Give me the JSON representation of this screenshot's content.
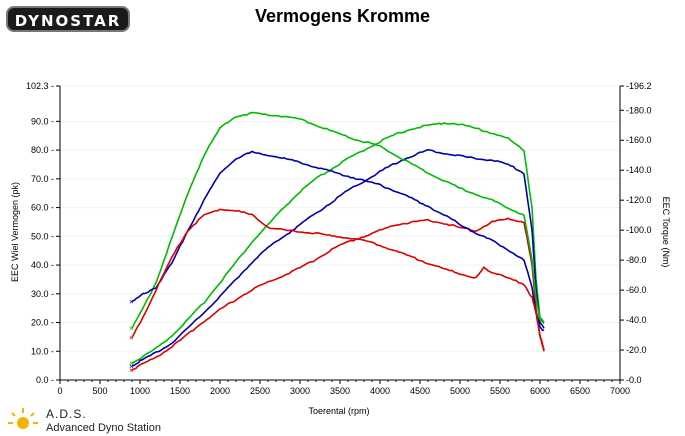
{
  "header": {
    "logo_text": "DYNOSTAR",
    "title": "Vermogens Kromme"
  },
  "footer": {
    "brand": "A.D.S.",
    "subtitle": "Advanced Dyno Station"
  },
  "colors": {
    "green": "#00bb00",
    "blue": "#0000b0",
    "red": "#dd0000",
    "watermark": "#e6e6e6"
  },
  "chart_data": {
    "type": "line",
    "title": "Vermogens Kromme",
    "xlabel": "Toerental (rpm)",
    "ylabel_left": "EEC Wiel Vermogen (pk)",
    "ylabel_right": "EEC Torque (Nm)",
    "xlim": [
      0,
      7000
    ],
    "ylim_left": [
      0,
      102.3
    ],
    "ylim_right": [
      0,
      196.2
    ],
    "x_ticks": [
      "0",
      "500",
      "1000",
      "1500",
      "2000",
      "2500",
      "3000",
      "3500",
      "4000",
      "4500",
      "5000",
      "5500",
      "6000",
      "6500",
      "7000"
    ],
    "y_left_ticks": [
      "0.0",
      "10.0",
      "20.0",
      "30.0",
      "40.0",
      "50.0",
      "60.0",
      "70.0",
      "80.0",
      "90.0",
      "102.3"
    ],
    "y_right_ticks": [
      "0.0",
      "20.0",
      "40.0",
      "60.0",
      "80.0",
      "100.0",
      "120.0",
      "140.0",
      "160.0",
      "180.0",
      "196.2"
    ],
    "series": [
      {
        "color": "green",
        "axis": "left",
        "x": [
          900,
          1000,
          1200,
          1400,
          1600,
          1800,
          2000,
          2200,
          2400,
          2600,
          2800,
          3000,
          3200,
          3400,
          3600,
          3800,
          4000,
          4200,
          4400,
          4600,
          4800,
          5000,
          5200,
          5400,
          5600,
          5800,
          5900,
          5950,
          6000,
          6050
        ],
        "y": [
          6,
          7.5,
          11,
          15.5,
          21,
          27,
          34,
          41,
          48,
          54,
          60,
          65.5,
          70,
          73.5,
          77,
          80,
          83,
          85.5,
          87.5,
          88.5,
          89.5,
          89,
          87.5,
          86,
          84,
          80,
          60,
          35,
          22,
          20
        ]
      },
      {
        "color": "blue",
        "axis": "left",
        "x": [
          900,
          1000,
          1200,
          1400,
          1600,
          1800,
          2000,
          2200,
          2400,
          2600,
          2800,
          3000,
          3200,
          3400,
          3600,
          3800,
          4000,
          4200,
          4400,
          4600,
          4800,
          5000,
          5200,
          5400,
          5600,
          5800,
          5900,
          5950,
          6000,
          6050
        ],
        "y": [
          5,
          6.5,
          9.5,
          13,
          18,
          23.5,
          29,
          35,
          41,
          46,
          50,
          54,
          58,
          62,
          66,
          69,
          72.5,
          75.5,
          78,
          80,
          79,
          78,
          77,
          76.5,
          75,
          72,
          52,
          32,
          20,
          18
        ]
      },
      {
        "color": "red",
        "axis": "left",
        "x": [
          900,
          1000,
          1200,
          1400,
          1600,
          1800,
          2000,
          2200,
          2400,
          2600,
          2800,
          3000,
          3200,
          3400,
          3600,
          3800,
          4000,
          4200,
          4400,
          4600,
          4800,
          5000,
          5200,
          5400,
          5600,
          5800,
          5900,
          5950,
          6000,
          6050
        ],
        "y": [
          3.5,
          5,
          8,
          11.5,
          16,
          20.5,
          24.5,
          28,
          31.5,
          34,
          36.5,
          39,
          42,
          45.5,
          48,
          50,
          52,
          54,
          55,
          55.5,
          54.5,
          53,
          52,
          55,
          56,
          55,
          40,
          25,
          15,
          10
        ]
      },
      {
        "color": "green",
        "axis": "right",
        "x": [
          900,
          1000,
          1200,
          1400,
          1600,
          1800,
          2000,
          2200,
          2400,
          2600,
          2800,
          3000,
          3200,
          3400,
          3600,
          3800,
          4000,
          4200,
          4400,
          4600,
          4800,
          5000,
          5200,
          5400,
          5600,
          5800,
          5900,
          5950,
          6000,
          6050
        ],
        "y": [
          35,
          44,
          65,
          95,
          125,
          150,
          168,
          176,
          178,
          177,
          176,
          174,
          170,
          166,
          162,
          159,
          156,
          150,
          144,
          138,
          133,
          128,
          124,
          120,
          115,
          110,
          80,
          55,
          40,
          38
        ]
      },
      {
        "color": "blue",
        "axis": "right",
        "x": [
          900,
          1000,
          1200,
          1400,
          1600,
          1800,
          2000,
          2200,
          2400,
          2600,
          2800,
          3000,
          3200,
          3400,
          3600,
          3800,
          4000,
          4200,
          4400,
          4600,
          4800,
          5000,
          5200,
          5400,
          5600,
          5800,
          5900,
          5950,
          6000,
          6050
        ],
        "y": [
          52,
          56,
          62,
          78,
          100,
          120,
          138,
          148,
          152,
          150,
          148,
          145,
          142,
          139,
          136,
          133,
          130,
          126,
          121,
          116,
          110,
          104,
          98,
          93,
          87,
          80,
          62,
          45,
          35,
          33
        ]
      },
      {
        "color": "red",
        "axis": "right",
        "x": [
          900,
          1000,
          1200,
          1400,
          1600,
          1800,
          2000,
          2200,
          2400,
          2600,
          2800,
          3000,
          3200,
          3400,
          3600,
          3800,
          4000,
          4200,
          4400,
          4600,
          4800,
          5000,
          5200,
          5300,
          5400,
          5600,
          5800,
          5900,
          5950,
          6000,
          6050
        ],
        "y": [
          28,
          38,
          60,
          82,
          100,
          110,
          114,
          113,
          110,
          102,
          100,
          99,
          98,
          96,
          95,
          93,
          90,
          86,
          82,
          78,
          74,
          71,
          68,
          75,
          72,
          68,
          64,
          55,
          45,
          30,
          20
        ]
      }
    ]
  }
}
